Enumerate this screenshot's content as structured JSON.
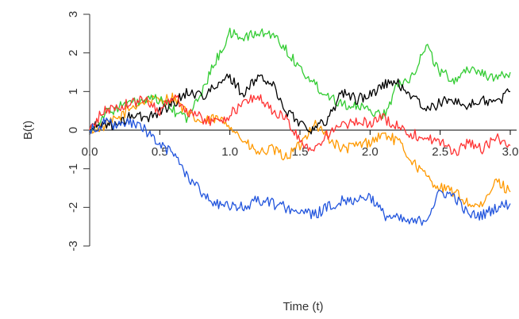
{
  "chart_data": {
    "type": "line",
    "title": "",
    "xlabel": "Time (t)",
    "ylabel": "B(t)",
    "xlim": [
      0,
      3
    ],
    "ylim": [
      -3,
      3
    ],
    "x_ticks": [
      "0.0",
      "0.5",
      "1.0",
      "1.5",
      "2.0",
      "2.5",
      "3.0"
    ],
    "y_ticks": [
      "-3",
      "-2",
      "-1",
      "0",
      "1",
      "2",
      "3"
    ],
    "grid": false,
    "legend": "none",
    "series": [
      {
        "color": "#ff9900",
        "x": [
          0,
          0.1,
          0.2,
          0.3,
          0.4,
          0.5,
          0.6,
          0.7,
          0.8,
          0.9,
          1.0,
          1.1,
          1.2,
          1.3,
          1.4,
          1.5,
          1.6,
          1.7,
          1.8,
          1.9,
          2.0,
          2.1,
          2.2,
          2.3,
          2.4,
          2.5,
          2.6,
          2.7,
          2.8,
          2.9,
          3.0
        ],
        "y": [
          0,
          0.1,
          0.3,
          0.6,
          0.75,
          0.8,
          0.85,
          0.4,
          0.2,
          0.3,
          0.15,
          -0.3,
          -0.6,
          -0.5,
          -0.7,
          -0.4,
          0.2,
          -0.2,
          -0.5,
          -0.4,
          -0.3,
          -0.1,
          -0.3,
          -0.8,
          -1.2,
          -1.5,
          -1.6,
          -1.9,
          -2.0,
          -1.3,
          -1.6
        ]
      },
      {
        "color": "#33cc33",
        "x": [
          0,
          0.1,
          0.2,
          0.3,
          0.4,
          0.5,
          0.6,
          0.7,
          0.8,
          0.9,
          1.0,
          1.1,
          1.2,
          1.3,
          1.4,
          1.5,
          1.6,
          1.7,
          1.8,
          1.9,
          2.0,
          2.1,
          2.2,
          2.3,
          2.4,
          2.5,
          2.6,
          2.7,
          2.8,
          2.9,
          3.0
        ],
        "y": [
          0,
          0.4,
          0.6,
          0.7,
          0.75,
          0.8,
          0.5,
          0.3,
          1.0,
          1.8,
          2.5,
          2.4,
          2.5,
          2.5,
          2.1,
          1.6,
          1.2,
          0.9,
          0.7,
          0.6,
          0.5,
          0.4,
          1.2,
          1.4,
          2.2,
          1.5,
          1.3,
          1.6,
          1.5,
          1.3,
          1.5
        ]
      },
      {
        "color": "#000000",
        "x": [
          0,
          0.1,
          0.2,
          0.3,
          0.4,
          0.5,
          0.6,
          0.7,
          0.8,
          0.9,
          1.0,
          1.1,
          1.2,
          1.3,
          1.4,
          1.5,
          1.6,
          1.7,
          1.8,
          1.9,
          2.0,
          2.1,
          2.2,
          2.3,
          2.4,
          2.5,
          2.6,
          2.7,
          2.8,
          2.9,
          3.0
        ],
        "y": [
          0,
          0.2,
          0.1,
          0.4,
          0.3,
          0.5,
          0.7,
          1.0,
          0.9,
          1.1,
          1.4,
          0.9,
          1.4,
          1.2,
          0.5,
          0.2,
          0.0,
          0.3,
          1.0,
          0.8,
          0.9,
          1.2,
          1.2,
          0.9,
          0.5,
          0.7,
          0.8,
          0.6,
          0.8,
          0.7,
          1.0
        ]
      },
      {
        "color": "#ff3333",
        "x": [
          0,
          0.1,
          0.2,
          0.3,
          0.4,
          0.5,
          0.6,
          0.7,
          0.8,
          0.9,
          1.0,
          1.1,
          1.2,
          1.3,
          1.4,
          1.5,
          1.6,
          1.7,
          1.8,
          1.9,
          2.0,
          2.1,
          2.2,
          2.3,
          2.4,
          2.5,
          2.6,
          2.7,
          2.8,
          2.9,
          3.0
        ],
        "y": [
          0,
          0.5,
          0.6,
          0.7,
          0.8,
          0.5,
          0.9,
          0.5,
          0.3,
          0.2,
          0.4,
          0.7,
          0.9,
          0.5,
          0.3,
          -0.3,
          -0.5,
          -0.1,
          0.1,
          0.2,
          0.2,
          0.3,
          0.1,
          -0.1,
          -0.2,
          -0.3,
          -0.6,
          -0.3,
          -0.5,
          -0.2,
          -0.4
        ]
      },
      {
        "color": "#2255dd",
        "x": [
          0,
          0.1,
          0.2,
          0.3,
          0.4,
          0.5,
          0.6,
          0.7,
          0.8,
          0.9,
          1.0,
          1.1,
          1.2,
          1.3,
          1.4,
          1.5,
          1.6,
          1.7,
          1.8,
          1.9,
          2.0,
          2.1,
          2.2,
          2.3,
          2.4,
          2.5,
          2.6,
          2.7,
          2.8,
          2.9,
          3.0
        ],
        "y": [
          0,
          0.2,
          0.1,
          0.2,
          0.0,
          -0.4,
          -0.6,
          -1.2,
          -1.6,
          -1.9,
          -2.0,
          -2.0,
          -1.8,
          -1.9,
          -2.0,
          -2.1,
          -2.2,
          -2.0,
          -1.8,
          -1.8,
          -1.7,
          -2.2,
          -2.3,
          -2.4,
          -2.3,
          -1.6,
          -1.7,
          -2.2,
          -2.2,
          -2.0,
          -1.9
        ]
      }
    ]
  }
}
